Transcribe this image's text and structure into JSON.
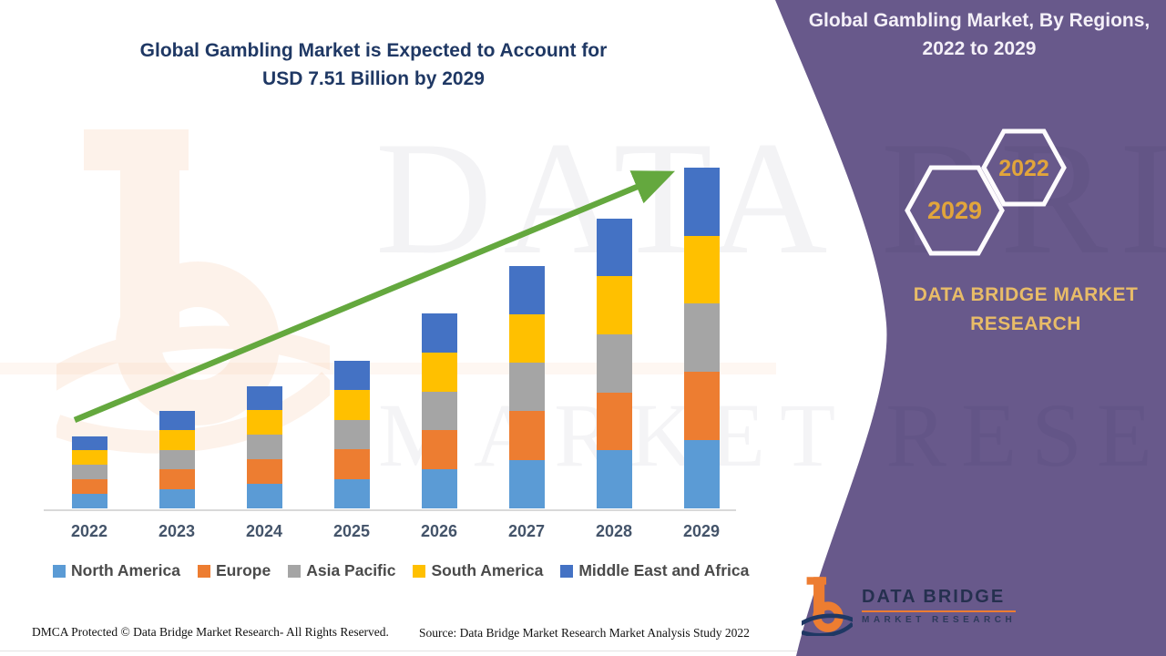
{
  "colors": {
    "panel_purple": "#68598B",
    "title_navy": "#1F3864",
    "gold_heading": "#E8BC68",
    "gold_year": "#E2A53B",
    "arrow_green": "#64A83E",
    "axis_label": "#44546A",
    "legend_text": "#4A4A4A"
  },
  "chart_panel": {
    "title_lines": [
      "Global Gambling Market is Expected to Account for",
      "USD 7.51 Billion by 2029"
    ],
    "footer_left": "DMCA Protected © Data Bridge Market Research- All Rights Reserved.",
    "footer_right": "Source: Data Bridge Market Research Market Analysis Study 2022"
  },
  "side_panel": {
    "title_lines": [
      "Global Gambling Market, By Regions,",
      "2022 to 2029"
    ],
    "hexagon_front_label": "2029",
    "hexagon_back_label": "2022",
    "brand_heading": "DATA BRIDGE MARKET RESEARCH",
    "logo_line1": "DATA BRIDGE",
    "logo_line2": "MARKET RESEARCH"
  },
  "watermark": {
    "text1": "DATA BRI",
    "text2": "MARKET RESEARCH"
  },
  "chart_data": {
    "type": "bar",
    "stacked": true,
    "title": "Global Gambling Market is Expected to Account for USD 7.51 Billion by 2029",
    "unit": "USD Billion",
    "categories": [
      "2022",
      "2023",
      "2024",
      "2025",
      "2026",
      "2027",
      "2028",
      "2029"
    ],
    "series": [
      {
        "name": "North America",
        "color": "#5B9BD5",
        "values": [
          0.32,
          0.43,
          0.54,
          0.65,
          0.86,
          1.07,
          1.28,
          1.5
        ]
      },
      {
        "name": "Europe",
        "color": "#ED7D31",
        "values": [
          0.32,
          0.43,
          0.54,
          0.65,
          0.86,
          1.07,
          1.28,
          1.51
        ]
      },
      {
        "name": "Asia Pacific",
        "color": "#A5A5A5",
        "values": [
          0.32,
          0.43,
          0.54,
          0.65,
          0.86,
          1.07,
          1.28,
          1.5
        ]
      },
      {
        "name": "South America",
        "color": "#FFC000",
        "values": [
          0.32,
          0.43,
          0.54,
          0.65,
          0.86,
          1.07,
          1.28,
          1.5
        ]
      },
      {
        "name": "Middle East and Africa",
        "color": "#4472C4",
        "values": [
          0.32,
          0.43,
          0.54,
          0.65,
          0.86,
          1.07,
          1.28,
          1.5
        ]
      }
    ],
    "totals": [
      1.6,
      2.15,
      2.7,
      3.25,
      4.3,
      5.35,
      6.4,
      7.51
    ],
    "ylim": [
      0,
      7.51
    ],
    "gridlines": false,
    "y_axis_shown": false,
    "legend_position": "bottom",
    "annotations": {
      "trend_arrow": {
        "direction": "up-right",
        "color": "#64A83E"
      }
    }
  }
}
